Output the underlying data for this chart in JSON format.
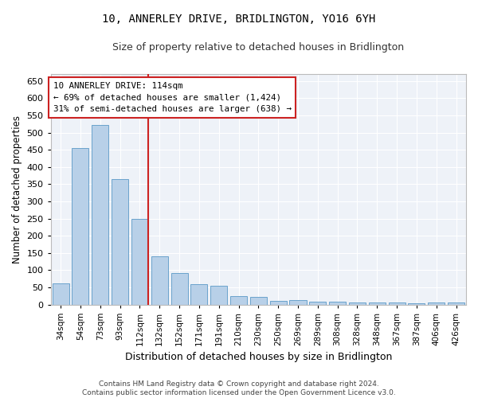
{
  "title": "10, ANNERLEY DRIVE, BRIDLINGTON, YO16 6YH",
  "subtitle": "Size of property relative to detached houses in Bridlington",
  "xlabel": "Distribution of detached houses by size in Bridlington",
  "ylabel": "Number of detached properties",
  "footer_line1": "Contains HM Land Registry data © Crown copyright and database right 2024.",
  "footer_line2": "Contains public sector information licensed under the Open Government Licence v3.0.",
  "annotation_title": "10 ANNERLEY DRIVE: 114sqm",
  "annotation_line1": "← 69% of detached houses are smaller (1,424)",
  "annotation_line2": "31% of semi-detached houses are larger (638) →",
  "bar_color": "#b8d0e8",
  "bar_edge_color": "#6aa3cc",
  "highlight_color": "#cc2222",
  "background_color": "#eef2f8",
  "grid_color": "#ffffff",
  "categories": [
    "34sqm",
    "54sqm",
    "73sqm",
    "93sqm",
    "112sqm",
    "132sqm",
    "152sqm",
    "171sqm",
    "191sqm",
    "210sqm",
    "230sqm",
    "250sqm",
    "269sqm",
    "289sqm",
    "308sqm",
    "328sqm",
    "348sqm",
    "367sqm",
    "387sqm",
    "406sqm",
    "426sqm"
  ],
  "values": [
    62,
    456,
    522,
    365,
    248,
    140,
    92,
    59,
    55,
    25,
    22,
    10,
    12,
    7,
    7,
    6,
    5,
    5,
    4,
    5,
    5
  ],
  "highlight_index": 4,
  "ylim": [
    0,
    670
  ],
  "yticks": [
    0,
    50,
    100,
    150,
    200,
    250,
    300,
    350,
    400,
    450,
    500,
    550,
    600,
    650
  ],
  "vline_x_index": 4
}
